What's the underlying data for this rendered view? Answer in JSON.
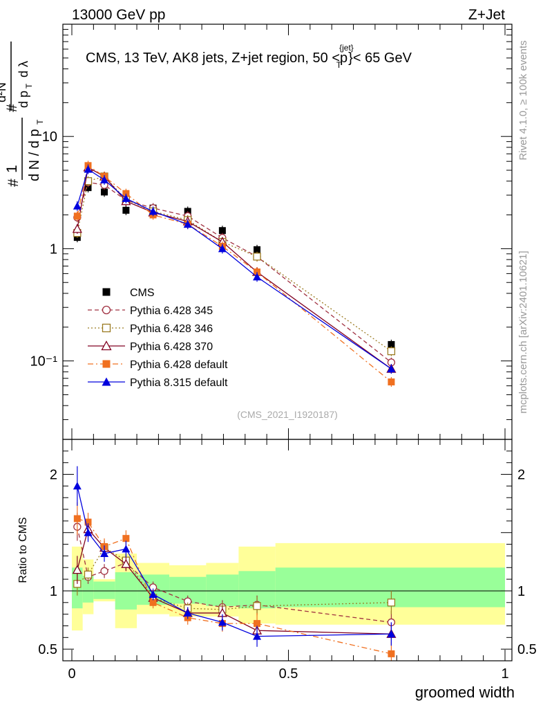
{
  "header": {
    "beam_label": "13000 GeV pp",
    "process_label": "Z+Jet",
    "plot_title": "CMS, 13 TeV, AK8 jets, Z+jet region, 50 < p_T^{jet} < 65 GeV",
    "title_main": "CMS, 13 TeV, AK8 jets, Z+jet region, 50 <p",
    "title_sup": "{jet}",
    "title_sub": "T",
    "title_end": "}< 65 GeV",
    "analysis_id": "(CMS_2021_I1920187)",
    "side_rivet": "Rivet 4.1.0, ≥ 100k events",
    "side_mcplots": "mcplots.cern.ch [arXiv:2401.10621]"
  },
  "chart_data": [
    {
      "type": "scatter",
      "panel": "main",
      "title": "CMS, 13 TeV, AK8 jets, Z+jet region, 50 < p_T^{jet} < 65 GeV",
      "xlabel": "groomed width",
      "ylabel": "1/(dN/dp_T) d²N/(dp_T dλ)",
      "yscale": "log",
      "xlim": [
        0,
        1
      ],
      "ylim": [
        0.02,
        100
      ],
      "y_ticks": [
        {
          "v": 0.1,
          "label": "10⁻¹"
        },
        {
          "v": 1,
          "label": "1"
        },
        {
          "v": 10,
          "label": "10"
        }
      ],
      "x_ticks": [
        {
          "v": 0,
          "label": "0"
        },
        {
          "v": 0.5,
          "label": "0.5"
        },
        {
          "v": 1,
          "label": "1"
        }
      ],
      "x": [
        0.0125,
        0.0375,
        0.075,
        0.125,
        0.1875,
        0.2675,
        0.3475,
        0.4275,
        0.7375
      ],
      "series": [
        {
          "name": "CMS",
          "style": "data",
          "color": "#000000",
          "marker": "square-filled",
          "values": [
            1.26,
            3.5,
            3.2,
            2.2,
            2.3,
            2.15,
            1.45,
            0.98,
            0.14
          ]
        },
        {
          "name": "Pythia 6.428 345",
          "style": "dashed",
          "color": "#a03040",
          "marker": "circle-open",
          "values": [
            1.9,
            3.9,
            3.7,
            2.7,
            2.3,
            1.95,
            1.25,
            0.85,
            0.097
          ]
        },
        {
          "name": "Pythia 6.428 346",
          "style": "dotted",
          "color": "#9a7a20",
          "marker": "square-open",
          "values": [
            1.38,
            4.0,
            4.4,
            2.75,
            2.15,
            1.8,
            1.15,
            0.85,
            0.122
          ]
        },
        {
          "name": "Pythia 6.428 370",
          "style": "solid",
          "color": "#800020",
          "marker": "triangle-open",
          "values": [
            1.5,
            5.3,
            4.4,
            2.65,
            2.1,
            1.75,
            1.15,
            0.62,
            0.085
          ]
        },
        {
          "name": "Pythia 6.428 default",
          "style": "dashdot",
          "color": "#f07020",
          "marker": "square-filled",
          "values": [
            1.95,
            5.5,
            4.4,
            3.1,
            2.0,
            1.65,
            1.05,
            0.62,
            0.065
          ]
        },
        {
          "name": "Pythia 8.315 default",
          "style": "solid",
          "color": "#0000dd",
          "marker": "triangle-filled",
          "values": [
            2.4,
            5.1,
            4.1,
            2.8,
            2.15,
            1.65,
            1.0,
            0.56,
            0.085
          ]
        }
      ]
    },
    {
      "type": "scatter",
      "panel": "ratio",
      "ylabel": "Ratio to CMS",
      "xlabel": "groomed width",
      "xlim": [
        0,
        1
      ],
      "ylim": [
        0.4,
        2.3
      ],
      "y_ticks": [
        {
          "v": 0.5,
          "label": "0.5"
        },
        {
          "v": 1,
          "label": "1"
        },
        {
          "v": 2,
          "label": "2"
        }
      ],
      "x_ticks": [
        {
          "v": 0,
          "label": "0"
        },
        {
          "v": 0.5,
          "label": "0.5"
        },
        {
          "v": 1,
          "label": "1"
        }
      ],
      "bands": [
        {
          "x0": 0.0,
          "x1": 0.025,
          "green": [
            0.85,
            1.2
          ],
          "yellow": [
            0.66,
            1.38
          ]
        },
        {
          "x0": 0.025,
          "x1": 0.05,
          "green": [
            0.9,
            1.13
          ],
          "yellow": [
            0.8,
            1.27
          ]
        },
        {
          "x0": 0.05,
          "x1": 0.1,
          "green": [
            0.93,
            1.08
          ],
          "yellow": [
            0.91,
            1.1
          ]
        },
        {
          "x0": 0.1,
          "x1": 0.15,
          "green": [
            0.84,
            1.16
          ],
          "yellow": [
            0.68,
            1.32
          ]
        },
        {
          "x0": 0.15,
          "x1": 0.225,
          "green": [
            0.88,
            1.14
          ],
          "yellow": [
            0.8,
            1.24
          ]
        },
        {
          "x0": 0.225,
          "x1": 0.31,
          "green": [
            0.89,
            1.12
          ],
          "yellow": [
            0.78,
            1.22
          ]
        },
        {
          "x0": 0.31,
          "x1": 0.385,
          "green": [
            0.87,
            1.14
          ],
          "yellow": [
            0.78,
            1.24
          ]
        },
        {
          "x0": 0.385,
          "x1": 0.47,
          "green": [
            0.85,
            1.17
          ],
          "yellow": [
            0.72,
            1.38
          ]
        },
        {
          "x0": 0.47,
          "x1": 1.0,
          "green": [
            0.86,
            1.2
          ],
          "yellow": [
            0.71,
            1.41
          ]
        }
      ],
      "x": [
        0.0125,
        0.0375,
        0.075,
        0.125,
        0.1875,
        0.2675,
        0.3475,
        0.4275,
        0.7375
      ],
      "series": [
        {
          "name": "Pythia 6.428 345",
          "values": [
            1.55,
            1.12,
            1.17,
            1.24,
            1.03,
            0.91,
            0.86,
            0.88,
            0.73
          ],
          "errors": [
            0.12,
            0.06,
            0.06,
            0.06,
            0.05,
            0.05,
            0.06,
            0.08,
            0.1
          ]
        },
        {
          "name": "Pythia 6.428 346",
          "values": [
            1.06,
            1.14,
            1.37,
            1.26,
            0.94,
            0.85,
            0.84,
            0.87,
            0.9
          ],
          "errors": [
            0.1,
            0.06,
            0.06,
            0.06,
            0.05,
            0.05,
            0.06,
            0.08,
            0.1
          ]
        },
        {
          "name": "Pythia 6.428 370",
          "values": [
            1.18,
            1.53,
            1.37,
            1.23,
            0.94,
            0.81,
            0.81,
            0.66,
            0.63
          ],
          "errors": [
            0.12,
            0.07,
            0.06,
            0.06,
            0.05,
            0.05,
            0.06,
            0.08,
            0.1
          ]
        },
        {
          "name": "Pythia 6.428 default",
          "values": [
            1.62,
            1.59,
            1.38,
            1.45,
            0.9,
            0.77,
            0.72,
            0.72,
            0.46
          ],
          "errors": [
            0.14,
            0.08,
            0.07,
            0.07,
            0.05,
            0.06,
            0.07,
            0.09,
            0.1
          ]
        },
        {
          "name": "Pythia 8.315 default",
          "values": [
            1.9,
            1.5,
            1.32,
            1.36,
            0.97,
            0.81,
            0.73,
            0.61,
            0.63
          ],
          "errors": [
            0.17,
            0.08,
            0.07,
            0.07,
            0.05,
            0.05,
            0.07,
            0.09,
            0.1
          ]
        }
      ]
    }
  ]
}
